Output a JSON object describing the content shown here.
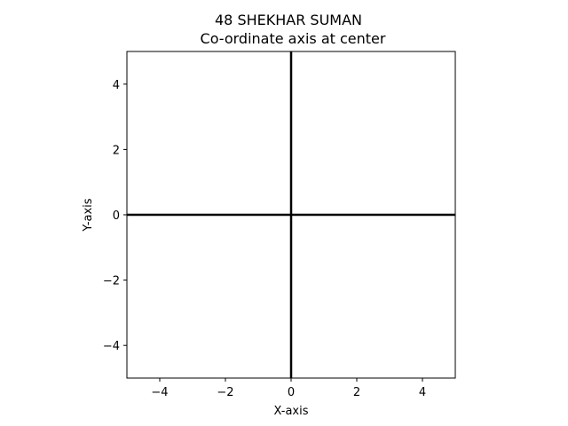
{
  "chart_data": {
    "type": "line",
    "title": "48 SHEKHAR SUMAN",
    "subtitle": "Co-ordinate axis at center",
    "xlabel": "X-axis",
    "ylabel": "Y-axis",
    "xlim": [
      -5,
      5
    ],
    "ylim": [
      -5,
      5
    ],
    "xticks": [
      -4,
      -2,
      0,
      2,
      4
    ],
    "yticks": [
      -4,
      -2,
      0,
      2,
      4
    ],
    "xtick_labels": [
      "−4",
      "−2",
      "0",
      "2",
      "4"
    ],
    "ytick_labels": [
      "−4",
      "−2",
      "0",
      "2",
      "4"
    ],
    "grid": false,
    "series": [
      {
        "x": [
          -5,
          5
        ],
        "y": [
          0,
          0
        ],
        "color": "#000000"
      },
      {
        "x": [
          0,
          0
        ],
        "y": [
          -5,
          5
        ],
        "color": "#000000"
      }
    ]
  }
}
